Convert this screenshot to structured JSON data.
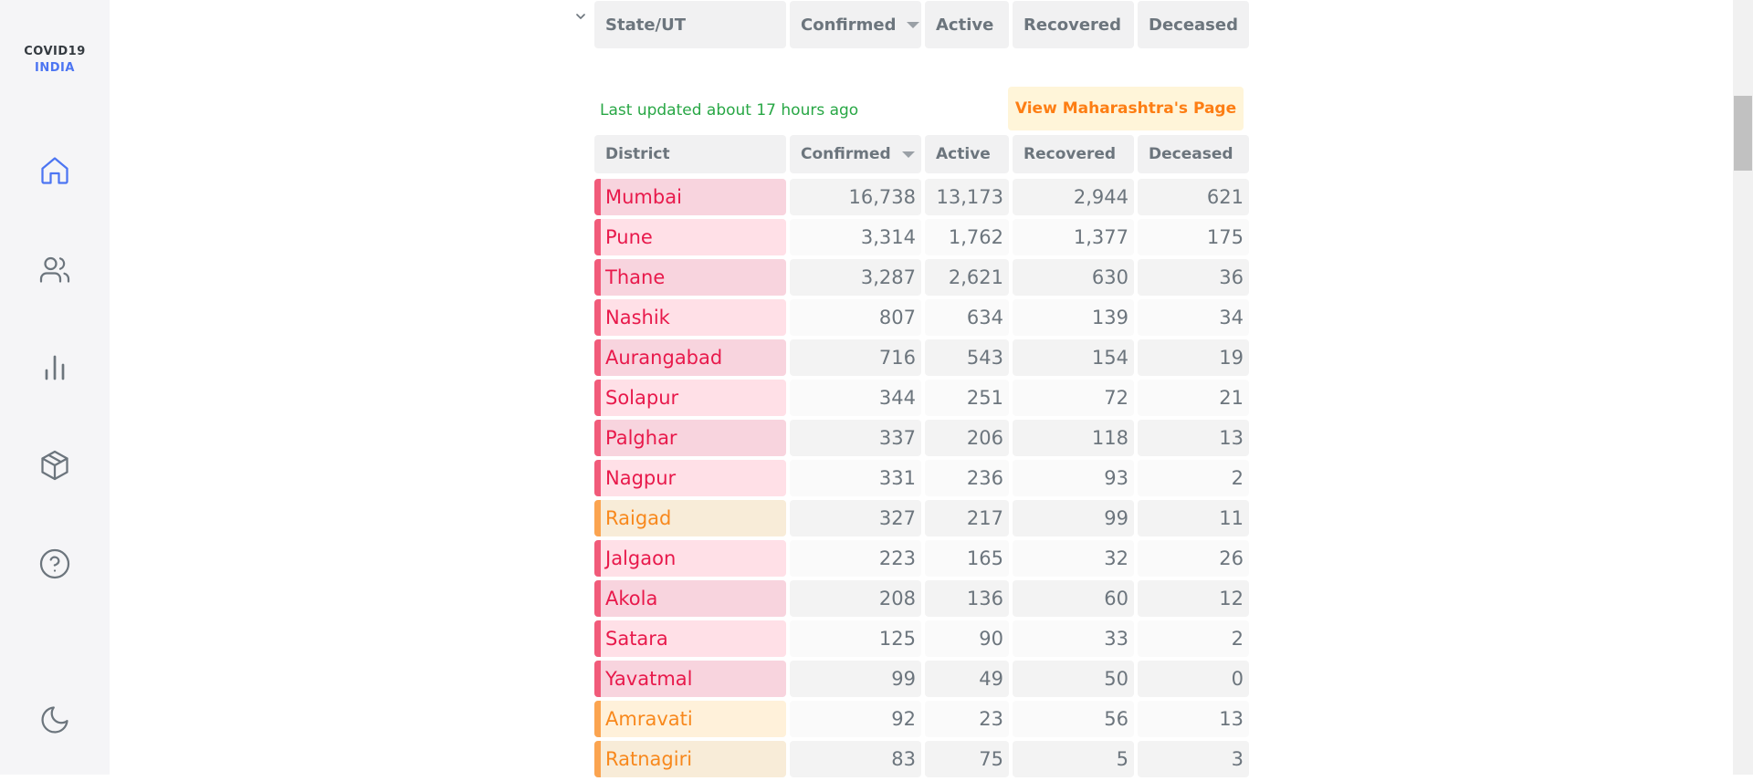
{
  "app": {
    "logo_line1": "COVID19",
    "logo_line2": "INDIA"
  },
  "nav": [
    {
      "name": "home",
      "icon": "home-icon",
      "active": true
    },
    {
      "name": "demographics",
      "icon": "users-icon",
      "active": false
    },
    {
      "name": "deepdive",
      "icon": "bar-chart-icon",
      "active": false
    },
    {
      "name": "essentials",
      "icon": "package-icon",
      "active": false
    },
    {
      "name": "faq",
      "icon": "help-circle-icon",
      "active": false
    },
    {
      "name": "theme",
      "icon": "moon-icon",
      "active": false
    }
  ],
  "state_header": {
    "columns": [
      "State/UT",
      "Confirmed",
      "Active",
      "Recovered",
      "Deceased"
    ],
    "sorted_column": "Confirmed"
  },
  "last_updated": "Last updated about 17 hours ago",
  "view_state_button": "View Maharashtra's Page",
  "district_header": {
    "columns": [
      "District",
      "Confirmed",
      "Active",
      "Recovered",
      "Deceased"
    ],
    "sorted_column": "Confirmed"
  },
  "districts": [
    {
      "name": "Mumbai",
      "confirmed": "16,738",
      "active": "13,173",
      "recovered": "2,944",
      "deceased": "621",
      "zone": "red"
    },
    {
      "name": "Pune",
      "confirmed": "3,314",
      "active": "1,762",
      "recovered": "1,377",
      "deceased": "175",
      "zone": "red"
    },
    {
      "name": "Thane",
      "confirmed": "3,287",
      "active": "2,621",
      "recovered": "630",
      "deceased": "36",
      "zone": "red"
    },
    {
      "name": "Nashik",
      "confirmed": "807",
      "active": "634",
      "recovered": "139",
      "deceased": "34",
      "zone": "red"
    },
    {
      "name": "Aurangabad",
      "confirmed": "716",
      "active": "543",
      "recovered": "154",
      "deceased": "19",
      "zone": "red"
    },
    {
      "name": "Solapur",
      "confirmed": "344",
      "active": "251",
      "recovered": "72",
      "deceased": "21",
      "zone": "red"
    },
    {
      "name": "Palghar",
      "confirmed": "337",
      "active": "206",
      "recovered": "118",
      "deceased": "13",
      "zone": "red"
    },
    {
      "name": "Nagpur",
      "confirmed": "331",
      "active": "236",
      "recovered": "93",
      "deceased": "2",
      "zone": "red"
    },
    {
      "name": "Raigad",
      "confirmed": "327",
      "active": "217",
      "recovered": "99",
      "deceased": "11",
      "zone": "orange"
    },
    {
      "name": "Jalgaon",
      "confirmed": "223",
      "active": "165",
      "recovered": "32",
      "deceased": "26",
      "zone": "red"
    },
    {
      "name": "Akola",
      "confirmed": "208",
      "active": "136",
      "recovered": "60",
      "deceased": "12",
      "zone": "red"
    },
    {
      "name": "Satara",
      "confirmed": "125",
      "active": "90",
      "recovered": "33",
      "deceased": "2",
      "zone": "red"
    },
    {
      "name": "Yavatmal",
      "confirmed": "99",
      "active": "49",
      "recovered": "50",
      "deceased": "0",
      "zone": "red"
    },
    {
      "name": "Amravati",
      "confirmed": "92",
      "active": "23",
      "recovered": "56",
      "deceased": "13",
      "zone": "orange"
    },
    {
      "name": "Ratnagiri",
      "confirmed": "83",
      "active": "75",
      "recovered": "5",
      "deceased": "3",
      "zone": "orange"
    }
  ],
  "colors": {
    "sidebar_bg": "#f5f5f7",
    "accent_blue": "#4c75f2",
    "red_zone_text": "#e8194b",
    "orange_zone_text": "#f8881c",
    "updated_green": "#28a745"
  }
}
